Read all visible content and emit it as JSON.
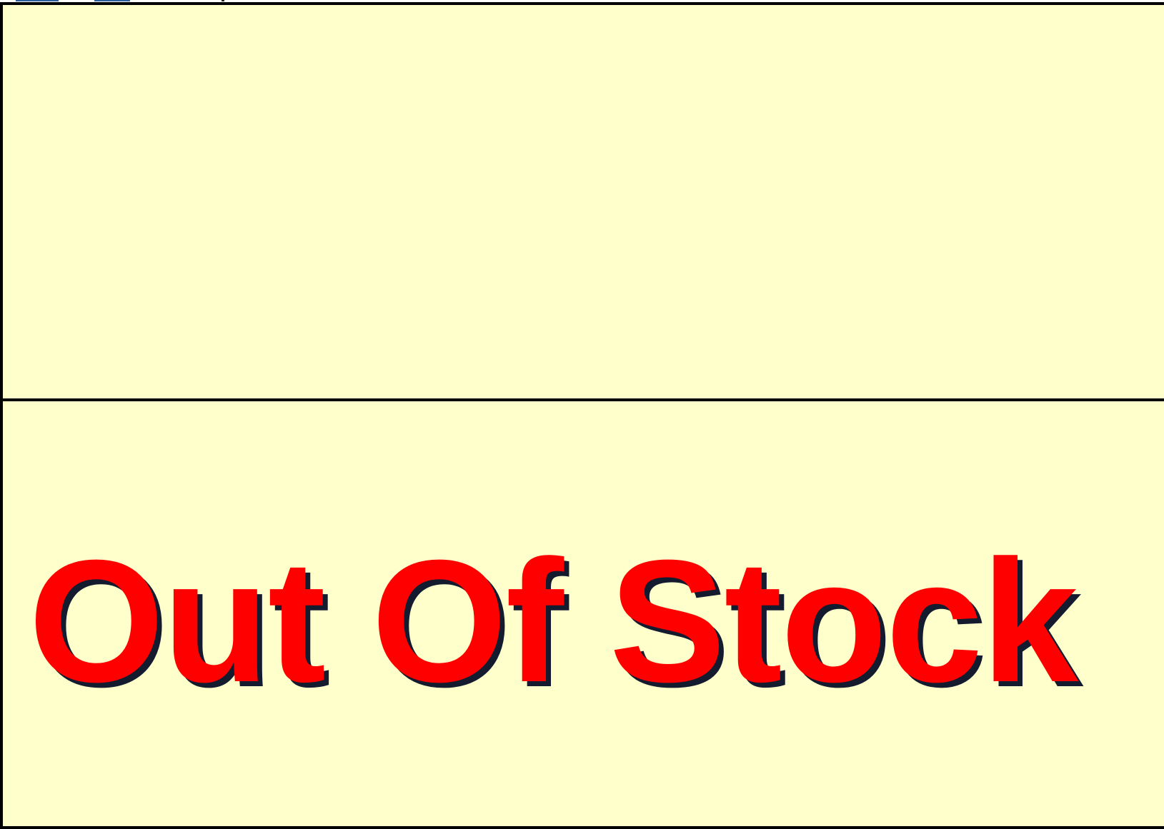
{
  "product": {
    "status_text": "Out Of Stock"
  },
  "colors": {
    "panel_background": "#ffffcc",
    "panel_border": "#000000",
    "status_text": "#ff0000",
    "status_shadow": "#151b2e"
  }
}
